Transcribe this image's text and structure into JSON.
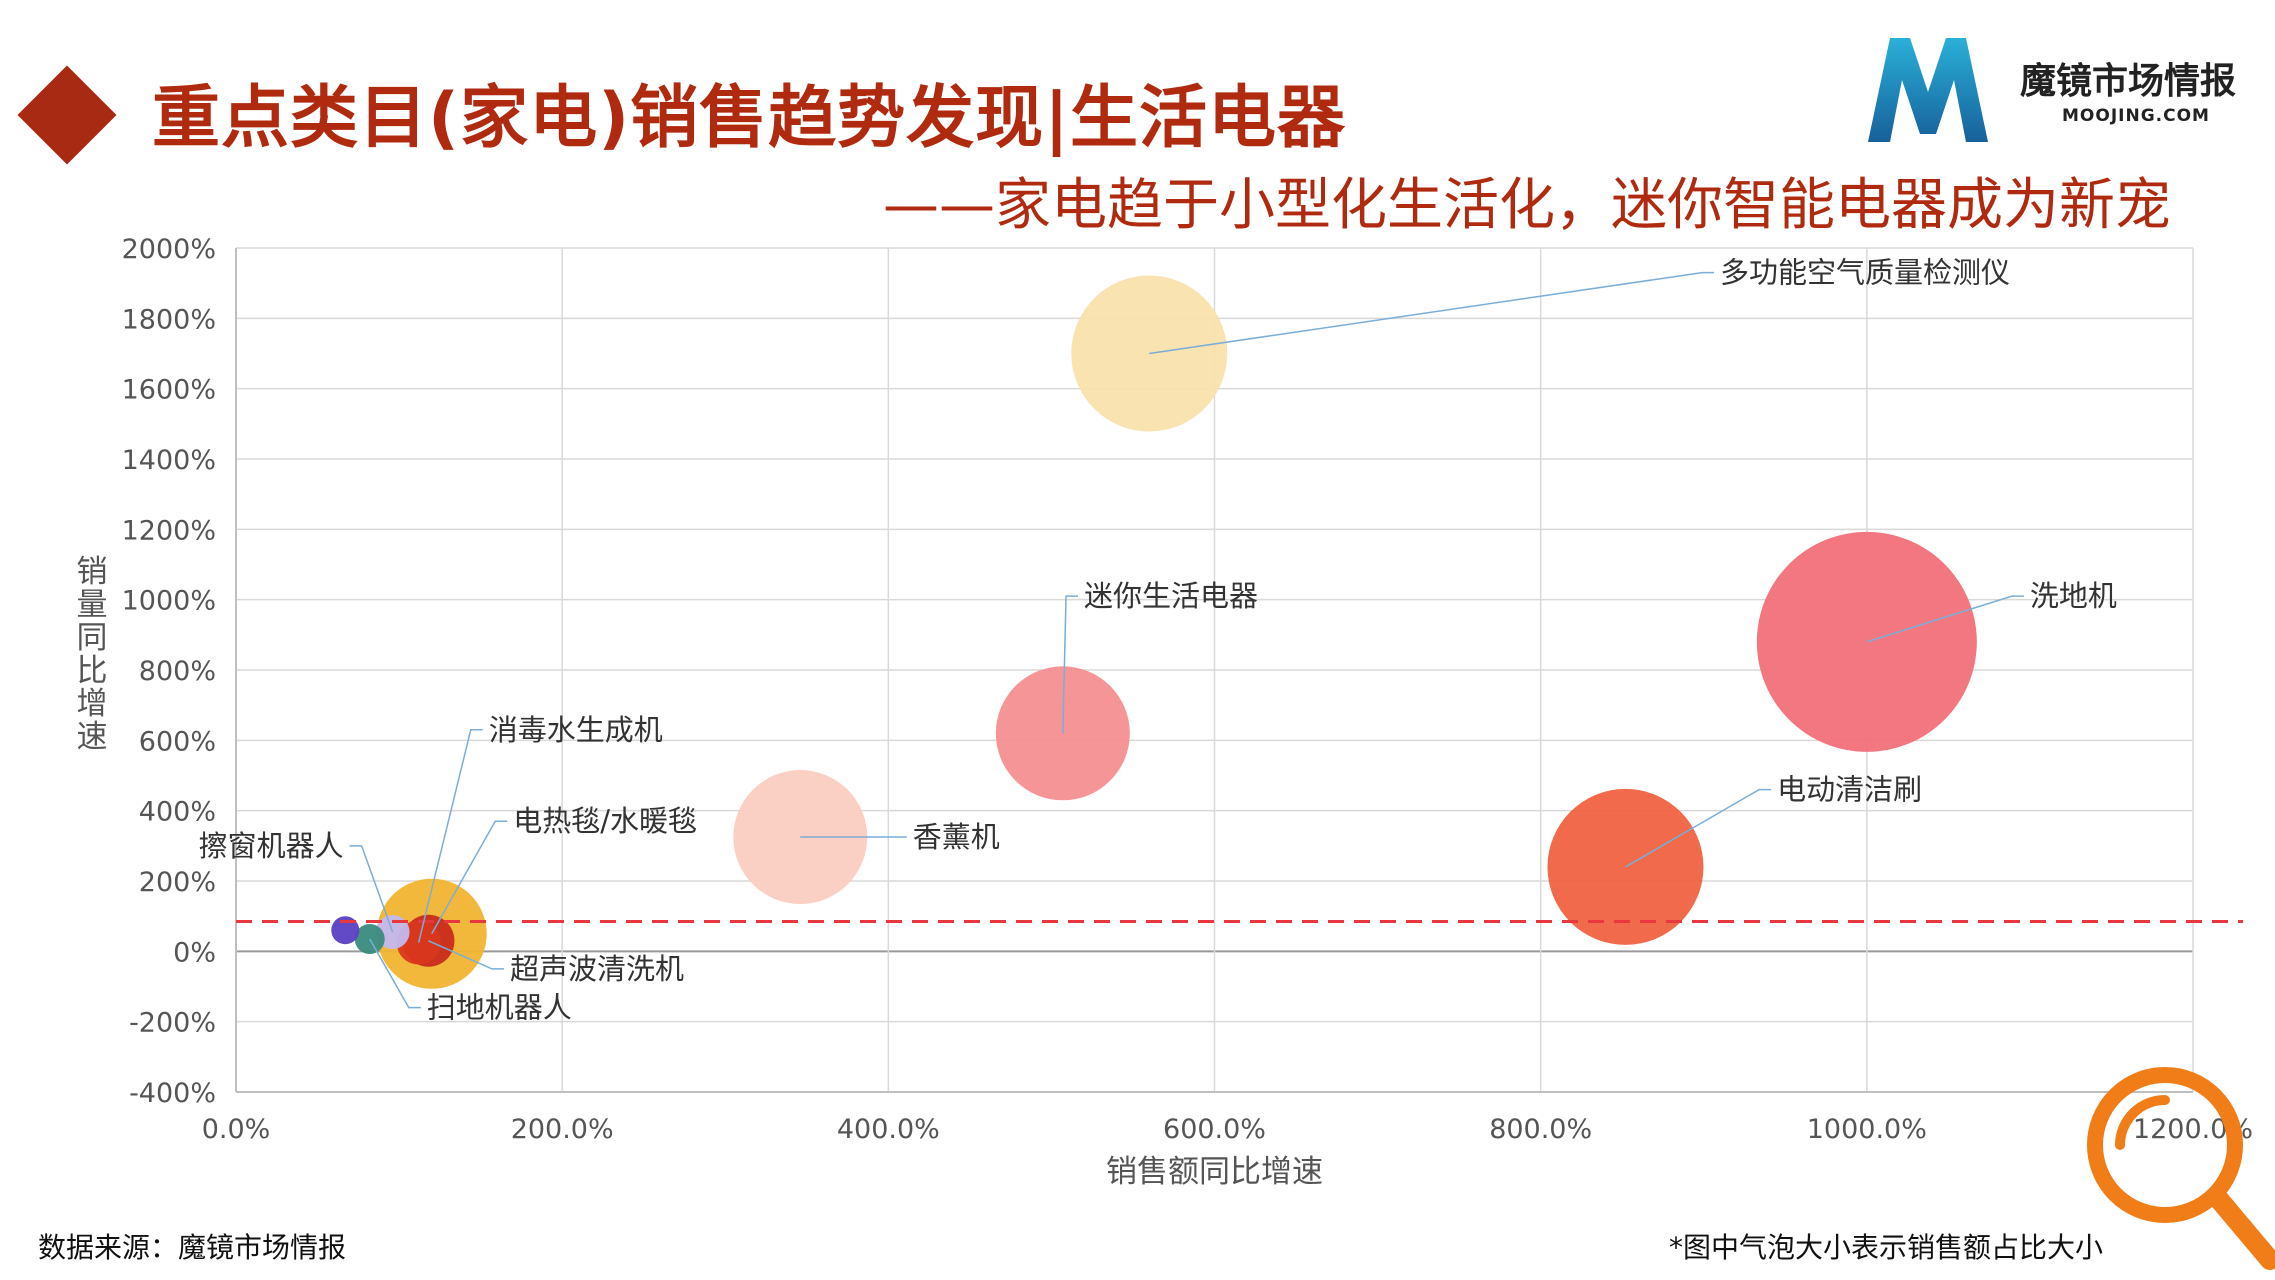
{
  "header": {
    "title": "重点类目(家电)销售趋势发现|生活电器",
    "subtitle": "——家电趋于小型化生活化，迷你智能电器成为新宠"
  },
  "logo": {
    "name": "魔镜市场情报",
    "url_text": "MOOJING.COM",
    "colors": [
      "#1a6fa8",
      "#2ab0d8"
    ]
  },
  "footer": {
    "source": "数据来源：魔镜市场情报",
    "note": "*图中气泡大小表示销售额占比大小"
  },
  "colors": {
    "accent": "#b02a10",
    "reference_line": "#e8383d",
    "search_icon": "#f07d18"
  },
  "chart_data": {
    "type": "scatter",
    "subtype": "bubble",
    "title": "",
    "xlabel": "销售额同比增速",
    "ylabel": "销量同比增速",
    "xlim": [
      0,
      1200
    ],
    "ylim": [
      -400,
      2000
    ],
    "x_ticks": [
      "0.0%",
      "200.0%",
      "400.0%",
      "600.0%",
      "800.0%",
      "1000.0%",
      "1200.0%"
    ],
    "y_ticks": [
      "-400%",
      "-200%",
      "0%",
      "200%",
      "400%",
      "600%",
      "800%",
      "1000%",
      "1200%",
      "1400%",
      "1600%",
      "1800%",
      "2000%"
    ],
    "grid": true,
    "reference_line_y": 85,
    "points": [
      {
        "name": "多功能空气质量检测仪",
        "x": 560,
        "y": 1700,
        "size": 78,
        "color": "#f8e2ad",
        "label_pos": [
          910,
          1930
        ]
      },
      {
        "name": "洗地机",
        "x": 1000,
        "y": 880,
        "size": 110,
        "color": "#f1707a",
        "label_pos": [
          1100,
          1010
        ]
      },
      {
        "name": "迷你生活电器",
        "x": 507,
        "y": 620,
        "size": 67,
        "color": "#f48f91",
        "label_pos": [
          520,
          1010
        ]
      },
      {
        "name": "电动清洁刷",
        "x": 852,
        "y": 240,
        "size": 78,
        "color": "#ef6241",
        "label_pos": [
          945,
          460
        ]
      },
      {
        "name": "香薰机",
        "x": 346,
        "y": 325,
        "size": 67,
        "color": "#fbcdc1",
        "label_pos": [
          415,
          325
        ]
      },
      {
        "name": "电热毯/水暖毯",
        "x": 120,
        "y": 50,
        "size": 55,
        "color": "#f0b430",
        "label_pos": [
          170,
          370
        ]
      },
      {
        "name": "超声波清洗机",
        "x": 118,
        "y": 30,
        "size": 26,
        "color": "#c82b1c",
        "label_pos": [
          168,
          -50
        ]
      },
      {
        "name": "消毒水生成机",
        "x": 112,
        "y": 25,
        "size": 22,
        "color": "#d9381e",
        "label_pos": [
          155,
          630
        ]
      },
      {
        "name": "擦窗机器人",
        "x": 96,
        "y": 55,
        "size": 17,
        "color": "#c3b8ee",
        "label_pos": [
          66,
          300
        ]
      },
      {
        "name": "扫地机器人",
        "x": 82,
        "y": 35,
        "size": 15,
        "color": "#3a8a7e",
        "label_pos": [
          117,
          -160
        ]
      },
      {
        "name": "",
        "x": 67,
        "y": 60,
        "size": 14,
        "color": "#5a40c4"
      }
    ]
  }
}
